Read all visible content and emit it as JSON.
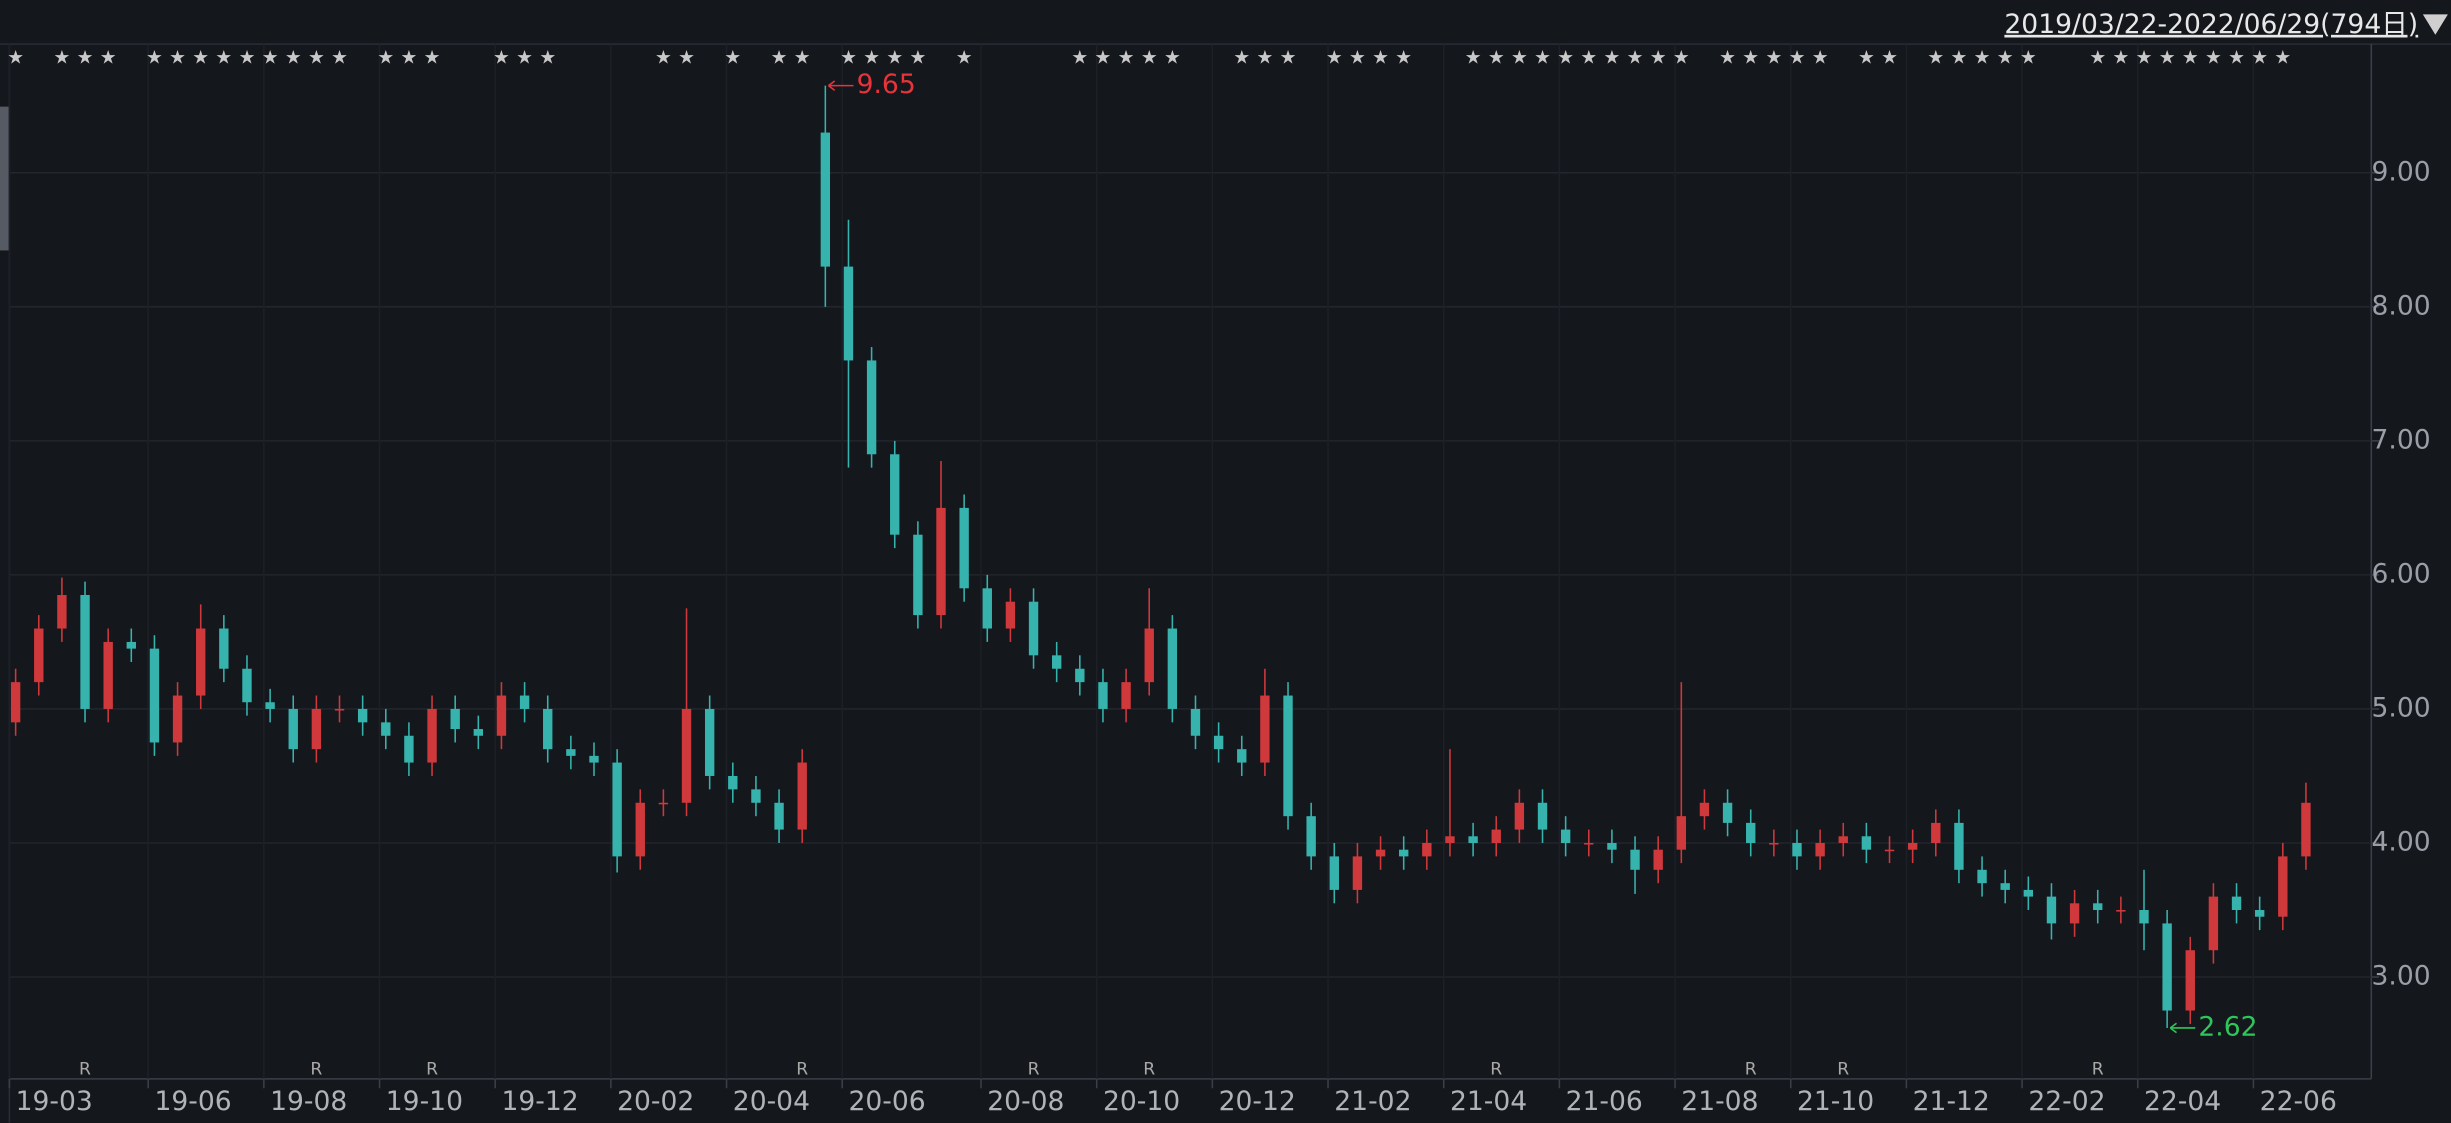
{
  "chart_data": {
    "type": "candlestick",
    "title": "2019/03/22-2022/06/29(794日)",
    "categories": [
      "19-03",
      null,
      null,
      null,
      null,
      null,
      "19-06",
      null,
      null,
      null,
      null,
      "19-08",
      null,
      null,
      null,
      null,
      "19-10",
      null,
      null,
      null,
      null,
      "19-12",
      null,
      null,
      null,
      null,
      "20-02",
      null,
      null,
      null,
      null,
      "20-04",
      null,
      null,
      null,
      null,
      "20-06",
      null,
      null,
      null,
      null,
      null,
      "20-08",
      null,
      null,
      null,
      null,
      "20-10",
      null,
      null,
      null,
      null,
      "20-12",
      null,
      null,
      null,
      null,
      "21-02",
      null,
      null,
      null,
      null,
      "21-04",
      null,
      null,
      null,
      null,
      "21-06",
      null,
      null,
      null,
      null,
      "21-08",
      null,
      null,
      null,
      null,
      "21-10",
      null,
      null,
      null,
      null,
      "21-12",
      null,
      null,
      null,
      null,
      "22-02",
      null,
      null,
      null,
      null,
      "22-04",
      null,
      null,
      null,
      null,
      "22-06",
      null,
      null
    ],
    "open": [
      4.9,
      5.2,
      5.6,
      5.85,
      5.0,
      5.5,
      5.45,
      4.75,
      5.1,
      5.6,
      5.3,
      5.05,
      5.0,
      4.7,
      5.0,
      5.0,
      4.9,
      4.8,
      4.6,
      5.0,
      4.85,
      4.8,
      5.1,
      5.0,
      4.7,
      4.65,
      4.6,
      3.9,
      4.3,
      4.3,
      5.0,
      4.5,
      4.4,
      4.3,
      4.1,
      9.3,
      8.3,
      7.6,
      6.9,
      6.3,
      5.7,
      6.5,
      5.9,
      5.6,
      5.8,
      5.4,
      5.3,
      5.2,
      5.0,
      5.2,
      5.6,
      5.0,
      4.8,
      4.7,
      4.6,
      5.1,
      4.2,
      3.9,
      3.65,
      3.9,
      3.95,
      3.9,
      4.0,
      4.05,
      4.0,
      4.1,
      4.3,
      4.1,
      4.0,
      4.0,
      3.95,
      3.8,
      3.95,
      4.2,
      4.3,
      4.15,
      4.0,
      4.0,
      3.9,
      4.0,
      4.05,
      3.95,
      3.95,
      4.0,
      4.15,
      3.8,
      3.7,
      3.65,
      3.6,
      3.4,
      3.55,
      3.5,
      3.5,
      3.4,
      2.75,
      3.2,
      3.6,
      3.5,
      3.45,
      3.9
    ],
    "high": [
      5.3,
      5.7,
      5.98,
      5.95,
      5.6,
      5.6,
      5.55,
      5.2,
      5.78,
      5.7,
      5.4,
      5.15,
      5.1,
      5.1,
      5.1,
      5.1,
      5.0,
      4.9,
      5.1,
      5.1,
      4.95,
      5.2,
      5.2,
      5.1,
      4.8,
      4.75,
      4.7,
      4.4,
      4.4,
      5.75,
      5.1,
      4.6,
      4.5,
      4.4,
      4.7,
      9.65,
      8.65,
      7.7,
      7.0,
      6.4,
      6.85,
      6.6,
      6.0,
      5.9,
      5.9,
      5.5,
      5.4,
      5.3,
      5.3,
      5.9,
      5.7,
      5.1,
      4.9,
      4.8,
      5.3,
      5.2,
      4.3,
      4.0,
      4.0,
      4.05,
      4.05,
      4.1,
      4.7,
      4.15,
      4.2,
      4.4,
      4.4,
      4.2,
      4.1,
      4.1,
      4.05,
      4.05,
      5.2,
      4.4,
      4.4,
      4.25,
      4.1,
      4.1,
      4.1,
      4.15,
      4.15,
      4.05,
      4.1,
      4.25,
      4.25,
      3.9,
      3.8,
      3.75,
      3.7,
      3.65,
      3.65,
      3.6,
      3.8,
      3.5,
      3.3,
      3.7,
      3.7,
      3.6,
      4.0,
      4.45
    ],
    "low": [
      4.8,
      5.1,
      5.5,
      4.9,
      4.9,
      5.35,
      4.65,
      4.65,
      5.0,
      5.2,
      4.95,
      4.9,
      4.6,
      4.6,
      4.9,
      4.8,
      4.7,
      4.5,
      4.5,
      4.75,
      4.7,
      4.7,
      4.9,
      4.6,
      4.55,
      4.5,
      3.78,
      3.8,
      4.2,
      4.2,
      4.4,
      4.3,
      4.2,
      4.0,
      4.0,
      8.0,
      6.8,
      6.8,
      6.2,
      5.6,
      5.6,
      5.8,
      5.5,
      5.5,
      5.3,
      5.2,
      5.1,
      4.9,
      4.9,
      5.1,
      4.9,
      4.7,
      4.6,
      4.5,
      4.5,
      4.1,
      3.8,
      3.55,
      3.55,
      3.8,
      3.8,
      3.8,
      3.9,
      3.9,
      3.9,
      4.0,
      4.0,
      3.9,
      3.9,
      3.85,
      3.62,
      3.7,
      3.85,
      4.1,
      4.05,
      3.9,
      3.9,
      3.8,
      3.8,
      3.9,
      3.85,
      3.85,
      3.85,
      3.9,
      3.7,
      3.6,
      3.55,
      3.5,
      3.28,
      3.3,
      3.4,
      3.4,
      3.2,
      2.62,
      2.65,
      3.1,
      3.4,
      3.35,
      3.35,
      3.8
    ],
    "close": [
      5.2,
      5.6,
      5.85,
      5.0,
      5.5,
      5.45,
      4.75,
      5.1,
      5.6,
      5.3,
      5.05,
      5.0,
      4.7,
      5.0,
      5.0,
      4.9,
      4.8,
      4.6,
      5.0,
      4.85,
      4.8,
      5.1,
      5.0,
      4.7,
      4.65,
      4.6,
      3.9,
      4.3,
      4.3,
      5.0,
      4.5,
      4.4,
      4.3,
      4.1,
      4.6,
      8.3,
      7.6,
      6.9,
      6.3,
      5.7,
      6.5,
      5.9,
      5.6,
      5.8,
      5.4,
      5.3,
      5.2,
      5.0,
      5.2,
      5.6,
      5.0,
      4.8,
      4.7,
      4.6,
      5.1,
      4.2,
      3.9,
      3.65,
      3.9,
      3.95,
      3.9,
      4.0,
      4.05,
      4.0,
      4.1,
      4.3,
      4.1,
      4.0,
      4.0,
      3.95,
      3.8,
      3.95,
      4.2,
      4.3,
      4.15,
      4.0,
      4.0,
      3.9,
      4.0,
      4.05,
      3.95,
      3.95,
      4.0,
      4.15,
      3.8,
      3.7,
      3.65,
      3.6,
      3.4,
      3.55,
      3.5,
      3.5,
      3.4,
      2.75,
      3.2,
      3.6,
      3.5,
      3.45,
      3.9,
      4.3
    ],
    "up_color": "#d0393c",
    "down_color": "#37b3ae",
    "max_color": "#e8333a",
    "min_color": "#2ec55a",
    "ylim": [
      2.24,
      9.96
    ],
    "yticks": [
      {
        "value": 3,
        "label": "3.00"
      },
      {
        "value": 4,
        "label": "4.00"
      },
      {
        "value": 5,
        "label": "5.00"
      },
      {
        "value": 6,
        "label": "6.00"
      },
      {
        "value": 7,
        "label": "7.00"
      },
      {
        "value": 8,
        "label": "8.00"
      },
      {
        "value": 9,
        "label": "9.00"
      }
    ],
    "grid": true,
    "event_symbol": "★",
    "event_indices": [
      0,
      2,
      3,
      4,
      6,
      7,
      8,
      9,
      10,
      11,
      12,
      13,
      14,
      16,
      17,
      18,
      21,
      22,
      23,
      28,
      29,
      31,
      33,
      34,
      36,
      37,
      38,
      39,
      41,
      46,
      47,
      48,
      49,
      50,
      53,
      54,
      55,
      57,
      58,
      59,
      60,
      63,
      64,
      65,
      66,
      67,
      68,
      69,
      70,
      71,
      72,
      74,
      75,
      76,
      77,
      78,
      80,
      81,
      83,
      84,
      85,
      86,
      87,
      90,
      91,
      92,
      93,
      94,
      95,
      96,
      97,
      98
    ],
    "r_symbol": "R",
    "r_indices": [
      3,
      13,
      18,
      34,
      44,
      49,
      64,
      75,
      79,
      90
    ]
  }
}
